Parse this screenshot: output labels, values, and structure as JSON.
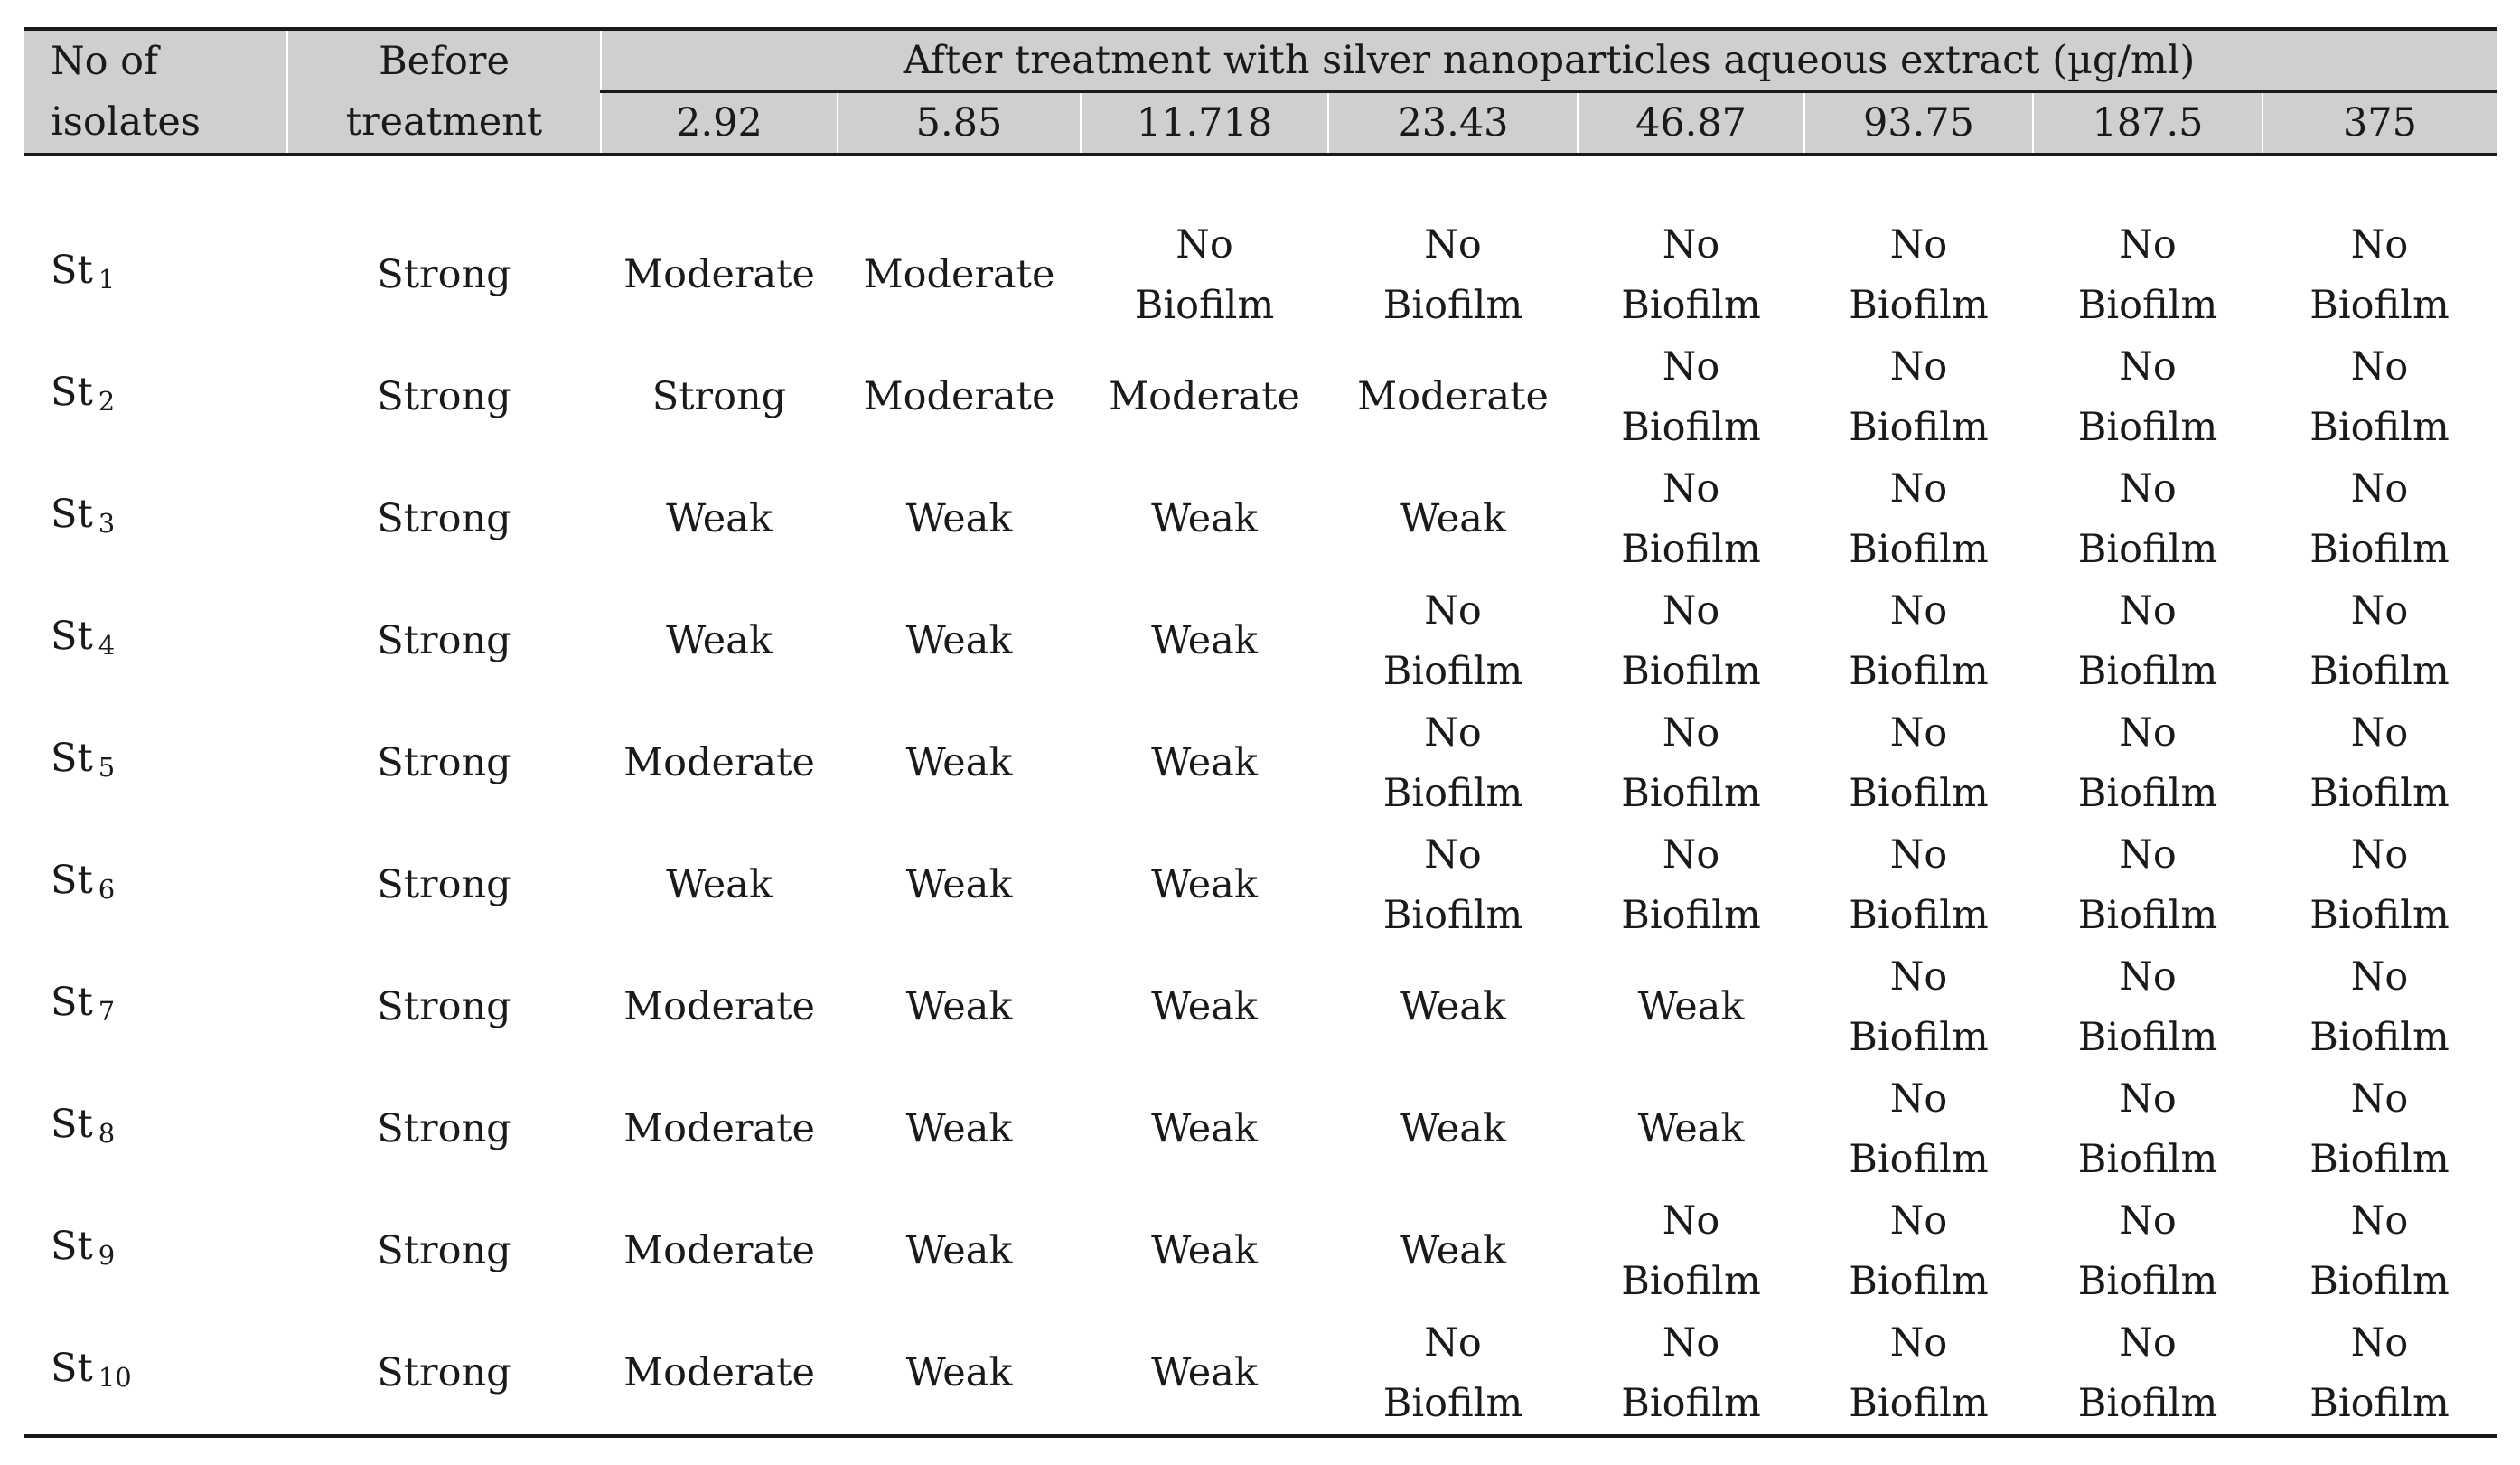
{
  "header": {
    "isolates_label": [
      "No of",
      "isolates"
    ],
    "before_label": [
      "Before",
      "treatment"
    ],
    "after_label": "After treatment with silver nanoparticles aqueous extract (µg/ml)",
    "doses": [
      "2.92",
      "5.85",
      "11.718",
      "23.43",
      "46.87",
      "93.75",
      "187.5",
      "375"
    ]
  },
  "rows": [
    {
      "prefix": "St",
      "sub": "1",
      "before": "Strong",
      "values": [
        "Moderate",
        "Moderate",
        "No Biofilm",
        "No Biofilm",
        "No Biofilm",
        "No Biofilm",
        "No Biofilm",
        "No Biofilm"
      ]
    },
    {
      "prefix": "St",
      "sub": "2",
      "before": "Strong",
      "values": [
        "Strong",
        "Moderate",
        "Moderate",
        "Moderate",
        "No Biofilm",
        "No Biofilm",
        "No Biofilm",
        "No Biofilm"
      ]
    },
    {
      "prefix": "St",
      "sub": "3",
      "before": "Strong",
      "values": [
        "Weak",
        "Weak",
        "Weak",
        "Weak",
        "No Biofilm",
        "No Biofilm",
        "No Biofilm",
        "No Biofilm"
      ]
    },
    {
      "prefix": "St",
      "sub": "4",
      "before": "Strong",
      "values": [
        "Weak",
        "Weak",
        "Weak",
        "No Biofilm",
        "No Biofilm",
        "No Biofilm",
        "No Biofilm",
        "No Biofilm"
      ]
    },
    {
      "prefix": "St",
      "sub": "5",
      "before": "Strong",
      "values": [
        "Moderate",
        "Weak",
        "Weak",
        "No Biofilm",
        "No Biofilm",
        "No Biofilm",
        "No Biofilm",
        "No Biofilm"
      ]
    },
    {
      "prefix": "St",
      "sub": "6",
      "before": "Strong",
      "values": [
        "Weak",
        "Weak",
        "Weak",
        "No Biofilm",
        "No Biofilm",
        "No Biofilm",
        "No Biofilm",
        "No Biofilm"
      ]
    },
    {
      "prefix": "St",
      "sub": "7",
      "before": "Strong",
      "values": [
        "Moderate",
        "Weak",
        "Weak",
        "Weak",
        "Weak",
        "No Biofilm",
        "No Biofilm",
        "No Biofilm"
      ]
    },
    {
      "prefix": "St",
      "sub": "8",
      "before": "Strong",
      "values": [
        "Moderate",
        "Weak",
        "Weak",
        "Weak",
        "Weak",
        "No Biofilm",
        "No Biofilm",
        "No Biofilm"
      ]
    },
    {
      "prefix": "St",
      "sub": "9",
      "before": "Strong",
      "values": [
        "Moderate",
        "Weak",
        "Weak",
        "Weak",
        "No Biofilm",
        "No Biofilm",
        "No Biofilm",
        "No Biofilm"
      ]
    },
    {
      "prefix": "St",
      "sub": "10",
      "before": "Strong",
      "values": [
        "Moderate",
        "Weak",
        "Weak",
        "No Biofilm",
        "No Biofilm",
        "No Biofilm",
        "No Biofilm",
        "No Biofilm"
      ]
    }
  ]
}
